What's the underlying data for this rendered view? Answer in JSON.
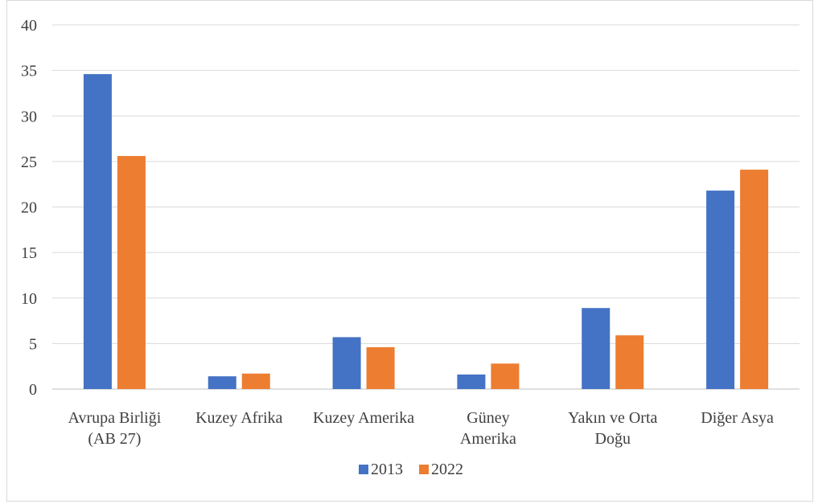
{
  "chart_data": {
    "type": "bar",
    "categories": [
      [
        "Avrupa Birliği",
        "(AB 27)"
      ],
      [
        "Kuzey Afrika"
      ],
      [
        "Kuzey Amerika"
      ],
      [
        "Güney",
        "Amerika"
      ],
      [
        "Yakın ve Orta",
        "Doğu"
      ],
      [
        "Diğer Asya"
      ]
    ],
    "series": [
      {
        "name": "2013",
        "color": "#4472C4",
        "values": [
          34.6,
          1.4,
          5.7,
          1.6,
          8.9,
          21.8
        ]
      },
      {
        "name": "2022",
        "color": "#ED7D31",
        "values": [
          25.6,
          1.7,
          4.6,
          2.8,
          5.9,
          24.1
        ]
      }
    ],
    "ylim": [
      0,
      40
    ],
    "yticks": [
      0,
      5,
      10,
      15,
      20,
      25,
      30,
      35,
      40
    ],
    "grid": true,
    "legend": "bottom"
  }
}
